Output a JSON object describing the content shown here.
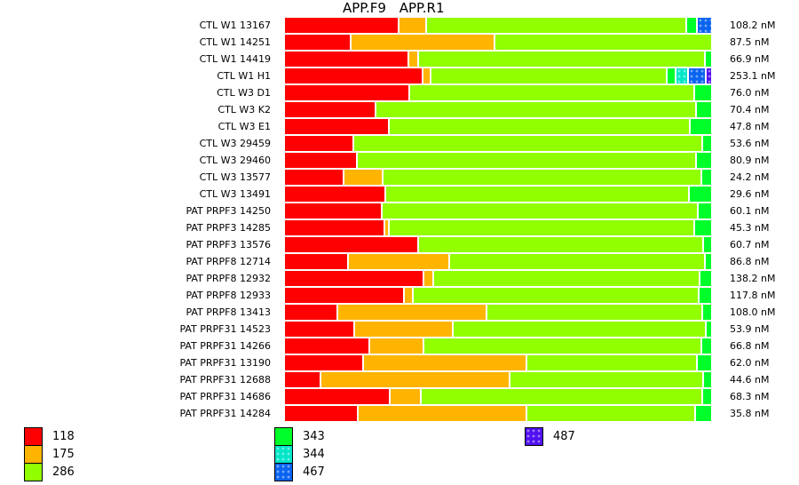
{
  "chart_data": {
    "type": "bar",
    "orientation": "horizontal",
    "stacked": "percent",
    "title_parts": [
      "APP.F9",
      "APP.R1"
    ],
    "categories": [
      "CTL W1 13167",
      "CTL W1 14251",
      "CTL W1 14419",
      "CTL W1 H1",
      "CTL W3 D1",
      "CTL W3 K2",
      "CTL W3 E1",
      "CTL W3 29459",
      "CTL W3 29460",
      "CTL W3 13577",
      "CTL W3 13491",
      "PAT PRPF3 14250",
      "PAT PRPF3 14285",
      "PAT PRPF3 13576",
      "PAT PRPF8 12714",
      "PAT PRPF8 12932",
      "PAT PRPF8 12933",
      "PAT PRPF8 13413",
      "PAT PRPF31 14523",
      "PAT PRPF31 14266",
      "PAT PRPF31 13190",
      "PAT PRPF31 12688",
      "PAT PRPF31 14686",
      "PAT PRPF31 14284"
    ],
    "totals": [
      "108.2 nM",
      "87.5 nM",
      "66.9 nM",
      "253.1 nM",
      "76.0 nM",
      "70.4 nM",
      "47.8 nM",
      "53.6 nM",
      "80.9 nM",
      "24.2 nM",
      "29.6 nM",
      "60.1 nM",
      "45.3 nM",
      "60.7 nM",
      "86.8 nM",
      "138.2 nM",
      "117.8 nM",
      "108.0 nM",
      "53.9 nM",
      "66.8 nM",
      "62.0 nM",
      "44.6 nM",
      "68.3 nM",
      "35.8 nM"
    ],
    "unit": "percent of total",
    "series": [
      {
        "name": "118",
        "color": "#ff0000",
        "pattern": false,
        "values": [
          26.8,
          15.6,
          29.1,
          32.4,
          29.3,
          21.4,
          24.5,
          16.2,
          17.0,
          13.9,
          23.7,
          22.9,
          23.5,
          31.4,
          15.0,
          32.6,
          28.1,
          12.5,
          16.4,
          20.0,
          18.5,
          8.5,
          24.7,
          17.3
        ]
      },
      {
        "name": "175",
        "color": "#ffb400",
        "pattern": false,
        "values": [
          6.4,
          33.5,
          2.3,
          1.9,
          0,
          0,
          0,
          0,
          0,
          9.1,
          0,
          0,
          1.0,
          0,
          23.7,
          2.3,
          2.1,
          34.9,
          23.1,
          12.7,
          38.0,
          44.3,
          7.3,
          39.5
        ]
      },
      {
        "name": "286",
        "color": "#91ff00",
        "pattern": false,
        "values": [
          60.7,
          50.9,
          66.9,
          55.3,
          66.5,
          74.8,
          70.3,
          81.5,
          79.2,
          74.4,
          70.9,
          73.8,
          71.3,
          66.5,
          59.7,
          62.2,
          66.9,
          50.3,
          59.0,
          64.9,
          39.9,
          45.1,
          65.7,
          39.3
        ]
      },
      {
        "name": "343",
        "color": "#00ff2a",
        "pattern": false,
        "values": [
          2.5,
          0,
          1.7,
          1.9,
          4.2,
          3.7,
          5.2,
          2.3,
          3.7,
          2.5,
          5.4,
          3.3,
          4.2,
          2.1,
          1.7,
          2.9,
          3.1,
          2.3,
          1.5,
          2.5,
          3.5,
          2.1,
          2.3,
          4.0
        ]
      },
      {
        "name": "344",
        "color": "#00e6c8",
        "pattern": true,
        "values": [
          0,
          0,
          0,
          2.9,
          0,
          0,
          0,
          0,
          0,
          0,
          0,
          0,
          0,
          0,
          0,
          0,
          0,
          0,
          0,
          0,
          0,
          0,
          0,
          0
        ]
      },
      {
        "name": "467",
        "color": "#0a64f0",
        "pattern": true,
        "values": [
          3.5,
          0,
          0,
          4.2,
          0,
          0,
          0,
          0,
          0,
          0,
          0,
          0,
          0,
          0,
          0,
          0,
          0,
          0,
          0,
          0,
          0,
          0,
          0,
          0
        ]
      },
      {
        "name": "487",
        "color": "#5010f0",
        "pattern": true,
        "values": [
          0,
          0,
          0,
          1.5,
          0,
          0,
          0,
          0,
          0,
          0,
          0,
          0,
          0,
          0,
          0,
          0,
          0,
          0,
          0,
          0,
          0,
          0,
          0,
          0
        ]
      }
    ],
    "legend_position": "bottom",
    "grid": false
  }
}
